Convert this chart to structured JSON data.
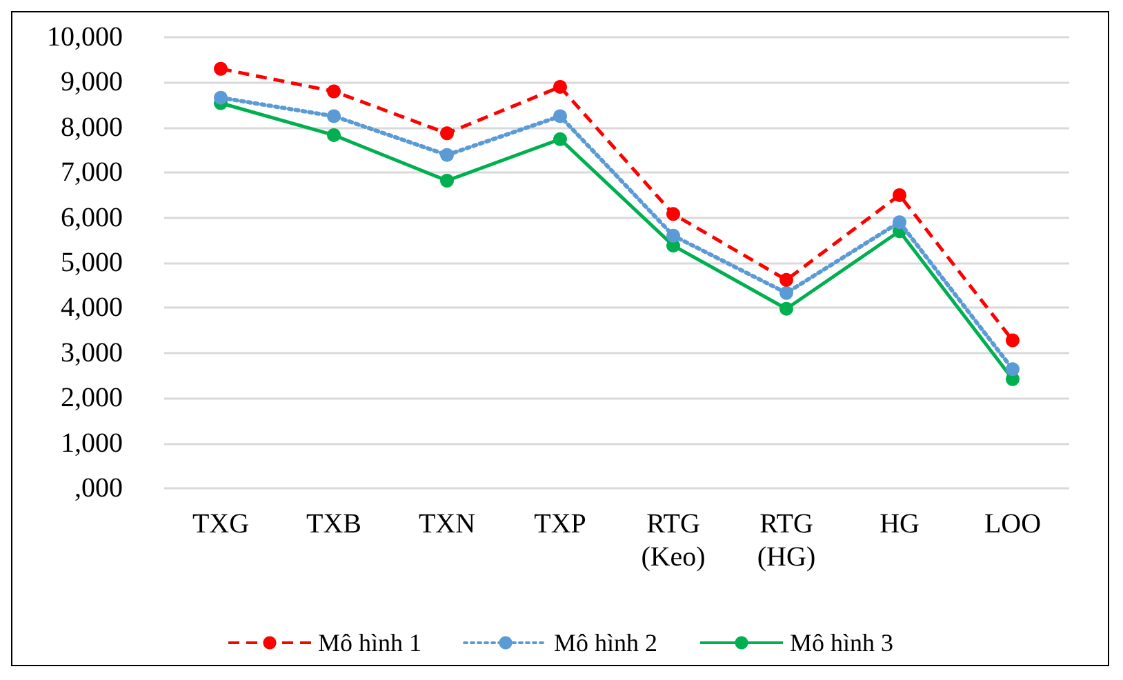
{
  "chart_data": {
    "type": "line",
    "categories": [
      "TXG",
      "TXB",
      "TXN",
      "TXP",
      "RTG\n(Keo)",
      "RTG\n(HG)",
      "HG",
      "LOO"
    ],
    "series": [
      {
        "name": "Mô hình 1",
        "color": "#ff0000",
        "line_style": "dashed",
        "values": [
          9300,
          8800,
          7870,
          8900,
          6080,
          4620,
          6500,
          3280
        ]
      },
      {
        "name": "Mô hình 2",
        "color": "#5b9bd5",
        "line_style": "dotted",
        "values": [
          8660,
          8250,
          7390,
          8250,
          5600,
          4330,
          5900,
          2640
        ]
      },
      {
        "name": "Mô hình 3",
        "color": "#00b050",
        "line_style": "solid",
        "values": [
          8540,
          7830,
          6820,
          7740,
          5380,
          3980,
          5700,
          2420
        ]
      }
    ],
    "ylim": [
      0,
      10000
    ],
    "yticks": [
      {
        "value": 0,
        "label": ",000"
      },
      {
        "value": 1000,
        "label": "1,000"
      },
      {
        "value": 2000,
        "label": "2,000"
      },
      {
        "value": 3000,
        "label": "3,000"
      },
      {
        "value": 4000,
        "label": "4,000"
      },
      {
        "value": 5000,
        "label": "5,000"
      },
      {
        "value": 6000,
        "label": "6,000"
      },
      {
        "value": 7000,
        "label": "7,000"
      },
      {
        "value": 8000,
        "label": "8,000"
      },
      {
        "value": 9000,
        "label": "9,000"
      },
      {
        "value": 10000,
        "label": "10,000"
      }
    ],
    "grid": "y",
    "legend": "bottom",
    "marker": "circle"
  }
}
